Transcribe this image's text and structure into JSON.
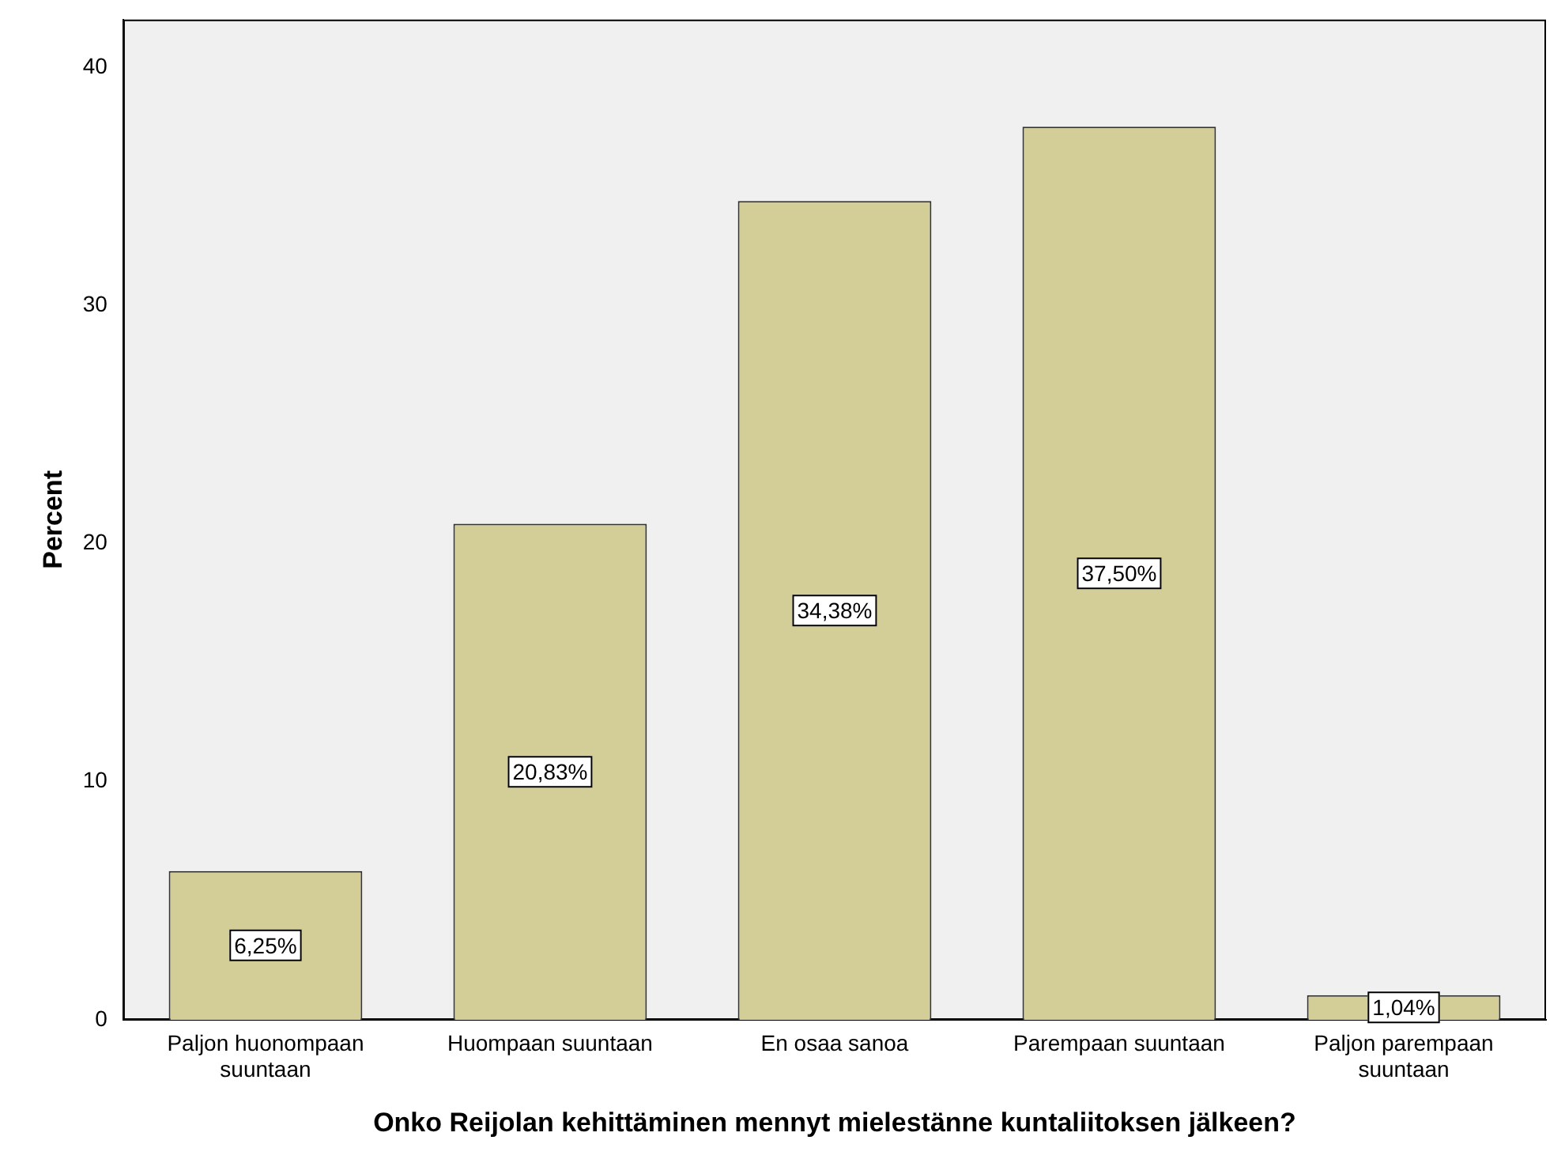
{
  "chart_data": {
    "type": "bar",
    "xlabel": "Onko Reijolan kehittäminen mennyt mielestänne kuntaliitoksen jälkeen?",
    "ylabel": "Percent",
    "categories": [
      "Paljon huonompaan suuntaan",
      "Huompaan suuntaan",
      "En osaa sanoa",
      "Parempaan suuntaan",
      "Paljon parempaan suuntaan"
    ],
    "values": [
      6.25,
      20.83,
      34.38,
      37.5,
      1.04
    ],
    "value_labels": [
      "6,25%",
      "20,83%",
      "34,38%",
      "37,50%",
      "1,04%"
    ],
    "color": "#d3ce97",
    "ylim": [
      0,
      42
    ],
    "yticks": [
      0,
      10,
      20,
      30,
      40
    ],
    "grid": false,
    "legend": false
  }
}
